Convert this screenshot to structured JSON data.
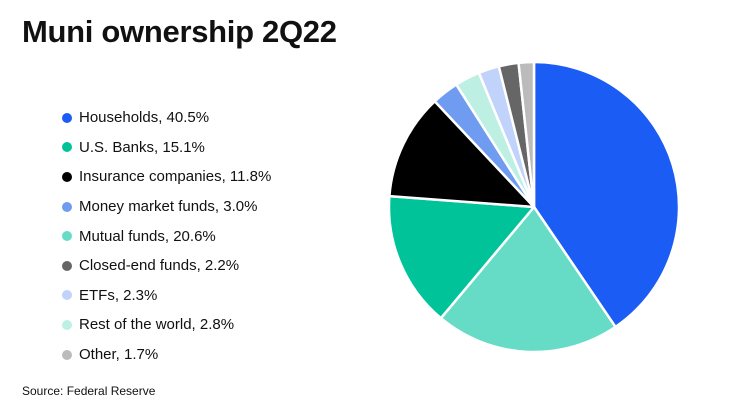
{
  "chart_data": {
    "type": "pie",
    "title": "Muni ownership 2Q22",
    "source": "Source: Federal Reserve",
    "slices": [
      {
        "label": "Households, 40.5%",
        "name": "Households",
        "value": 40.5,
        "color": "#1b5cf5"
      },
      {
        "label": "Mutual funds, 20.6%",
        "name": "Mutual funds",
        "value": 20.6,
        "color": "#66dcc6"
      },
      {
        "label": "U.S. Banks, 15.1%",
        "name": "U.S. Banks",
        "value": 15.1,
        "color": "#00c39a"
      },
      {
        "label": "Insurance companies, 11.8%",
        "name": "Insurance companies",
        "value": 11.8,
        "color": "#000000"
      },
      {
        "label": "Money market funds, 3.0%",
        "name": "Money market funds",
        "value": 3.0,
        "color": "#6f9cf0"
      },
      {
        "label": "Rest of the world, 2.8%",
        "name": "Rest of the world",
        "value": 2.8,
        "color": "#bdf0e3"
      },
      {
        "label": "ETFs, 2.3%",
        "name": "ETFs",
        "value": 2.3,
        "color": "#c1d3fb"
      },
      {
        "label": "Closed-end funds, 2.2%",
        "name": "Closed-end funds",
        "value": 2.2,
        "color": "#666666"
      },
      {
        "label": "Other, 1.7%",
        "name": "Other",
        "value": 1.7,
        "color": "#bbbbbb"
      }
    ],
    "legend": [
      {
        "label": "Households, 40.5%",
        "color": "#1b5cf5"
      },
      {
        "label": "U.S. Banks, 15.1%",
        "color": "#00c39a"
      },
      {
        "label": "Insurance companies, 11.8%",
        "color": "#000000"
      },
      {
        "label": "Money market funds, 3.0%",
        "color": "#6f9cf0"
      },
      {
        "label": "Mutual funds, 20.6%",
        "color": "#66dcc6"
      },
      {
        "label": "Closed-end funds, 2.2%",
        "color": "#666666"
      },
      {
        "label": "ETFs, 2.3%",
        "color": "#c1d3fb"
      },
      {
        "label": "Rest of the world, 2.8%",
        "color": "#bdf0e3"
      },
      {
        "label": "Other, 1.7%",
        "color": "#bbbbbb"
      }
    ],
    "legend_position": "left"
  }
}
